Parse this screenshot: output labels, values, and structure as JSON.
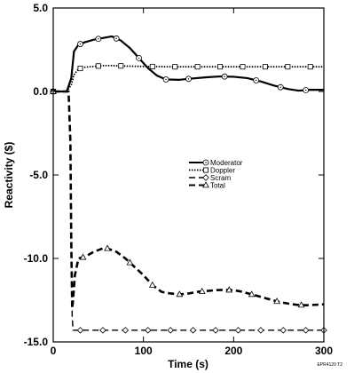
{
  "chart_data": {
    "type": "line",
    "xlabel": "Time (s)",
    "ylabel": "Reactivity ($)",
    "xlim": [
      0,
      300
    ],
    "ylim": [
      -15,
      5
    ],
    "xticks": [
      0,
      100,
      200,
      300
    ],
    "xtick_labels": [
      "0",
      "100",
      "200",
      "300"
    ],
    "yticks": [
      5,
      0,
      -5,
      -10,
      -15
    ],
    "ytick_labels": [
      "5.0",
      "0.0",
      "-5.0",
      "-10.0",
      "-15.0"
    ],
    "grid": false,
    "legend_position": "center",
    "series": [
      {
        "name": "Moderator",
        "style": "solid",
        "marker": "circle-dot",
        "width": 2.2,
        "x": [
          0,
          15,
          20,
          23,
          28,
          35,
          45,
          55,
          65,
          75,
          85,
          95,
          105,
          115,
          125,
          140,
          155,
          170,
          185,
          200,
          215,
          230,
          245,
          260,
          272,
          285,
          300
        ],
        "y": [
          0,
          0,
          0.8,
          2.4,
          2.8,
          2.95,
          3.1,
          3.2,
          3.3,
          3.05,
          2.6,
          2.0,
          1.4,
          0.95,
          0.72,
          0.7,
          0.78,
          0.85,
          0.9,
          0.88,
          0.8,
          0.6,
          0.35,
          0.15,
          0.05,
          0.1,
          0.1
        ],
        "marker_x": [
          0,
          30,
          50,
          70,
          95,
          125,
          150,
          190,
          225,
          252,
          280
        ]
      },
      {
        "name": "Doppler",
        "style": "dotted",
        "marker": "square",
        "width": 1.8,
        "x": [
          0,
          15,
          20,
          23,
          28,
          35,
          45,
          55,
          65,
          80,
          100,
          130,
          160,
          200,
          250,
          300
        ],
        "y": [
          0,
          0,
          0.4,
          1.0,
          1.35,
          1.45,
          1.5,
          1.55,
          1.55,
          1.52,
          1.5,
          1.48,
          1.48,
          1.48,
          1.48,
          1.48
        ],
        "marker_x": [
          0,
          30,
          50,
          75,
          110,
          135,
          160,
          185,
          210,
          235,
          260,
          285
        ]
      },
      {
        "name": "Scram",
        "style": "dashed",
        "marker": "diamond",
        "width": 1.4,
        "x": [
          0,
          17,
          19,
          20,
          21,
          22,
          300
        ],
        "y": [
          0,
          0,
          -3,
          -9,
          -13.5,
          -14.3,
          -14.3
        ],
        "marker_x": [
          0,
          30,
          55,
          80,
          105,
          130,
          155,
          180,
          205,
          230,
          255,
          280,
          300
        ]
      },
      {
        "name": "Total",
        "style": "dashed",
        "marker": "triangle",
        "width": 2.6,
        "x": [
          0,
          17,
          19,
          20,
          21,
          22,
          24,
          28,
          35,
          45,
          55,
          60,
          70,
          80,
          90,
          100,
          110,
          120,
          130,
          140,
          150,
          160,
          170,
          180,
          190,
          200,
          210,
          220,
          230,
          240,
          250,
          260,
          270,
          280,
          290,
          300
        ],
        "y": [
          0,
          0,
          -3,
          -9,
          -13,
          -12.5,
          -11,
          -10,
          -9.9,
          -9.6,
          -9.4,
          -9.4,
          -9.6,
          -10.0,
          -10.5,
          -11.0,
          -11.6,
          -12.0,
          -12.1,
          -12.15,
          -12.1,
          -12.0,
          -11.95,
          -11.9,
          -11.88,
          -11.9,
          -12.0,
          -12.15,
          -12.3,
          -12.45,
          -12.6,
          -12.7,
          -12.78,
          -12.8,
          -12.78,
          -12.75
        ],
        "marker_x": [
          0,
          33,
          60,
          85,
          110,
          140,
          165,
          195,
          220,
          248,
          275
        ]
      }
    ],
    "figure_id": "EPR4120 T2"
  }
}
